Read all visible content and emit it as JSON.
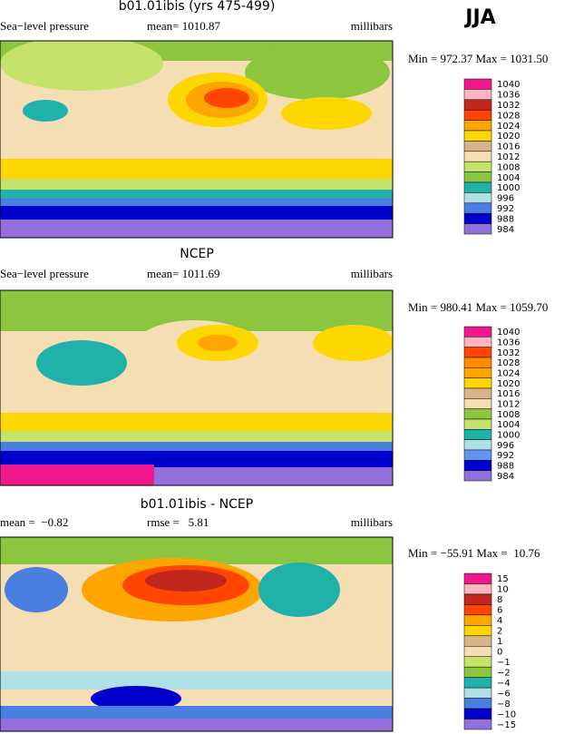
{
  "title": "JJA",
  "panels": [
    {
      "title": "b01.01ibis (yrs 475-499)",
      "left_label": "Sea−level pressure",
      "stat_label": "mean= 1010.87",
      "units": "millibars",
      "minmax": "Min = 972.37 Max = 1031.50",
      "colorbar": {
        "labels": [
          "1040",
          "1036",
          "1032",
          "1028",
          "1024",
          "1020",
          "1016",
          "1012",
          "1008",
          "1004",
          "1000",
          "996",
          "992",
          "988",
          "984"
        ],
        "colors": [
          "#f0178f",
          "#ffb6c1",
          "#c0281e",
          "#ff4500",
          "#ffa500",
          "#ffd700",
          "#d9b48a",
          "#f5deb3",
          "#c5e36b",
          "#8cc63f",
          "#20b2aa",
          "#b0e0e6",
          "#4a7ee0",
          "#0000cd",
          "#9370db"
        ]
      }
    },
    {
      "title": "NCEP",
      "left_label": "Sea−level pressure",
      "stat_label": "mean= 1011.69",
      "units": "millibars",
      "minmax": "Min = 980.41 Max = 1059.70",
      "colorbar": {
        "labels": [
          "1040",
          "1036",
          "1032",
          "1028",
          "1024",
          "1020",
          "1016",
          "1012",
          "1008",
          "1004",
          "1000",
          "996",
          "992",
          "988",
          "984"
        ],
        "colors": [
          "#f0178f",
          "#ffb6c1",
          "#ff4500",
          "#ff8c00",
          "#ffa500",
          "#ffd700",
          "#d9b48a",
          "#f5deb3",
          "#8cc63f",
          "#c5e36b",
          "#20b2aa",
          "#b0e0e6",
          "#6495ed",
          "#0000cd",
          "#9370db"
        ]
      }
    },
    {
      "title": "b01.01ibis - NCEP",
      "left_label": "mean =  −0.82",
      "stat_label": "rmse =   5.81",
      "units": "millibars",
      "minmax": "Min = −55.91 Max =  10.76",
      "colorbar": {
        "labels": [
          "15",
          "10",
          "8",
          "6",
          "4",
          "2",
          "1",
          "0",
          "−1",
          "−2",
          "−4",
          "−6",
          "−8",
          "−10",
          "−15"
        ],
        "colors": [
          "#f0178f",
          "#ffb6c1",
          "#c0281e",
          "#ff4500",
          "#ffa500",
          "#ffd700",
          "#d9b48a",
          "#f5deb3",
          "#c5e36b",
          "#8cc63f",
          "#20b2aa",
          "#b0e0e6",
          "#4a7ee0",
          "#0000cd",
          "#9370db"
        ]
      }
    }
  ]
}
